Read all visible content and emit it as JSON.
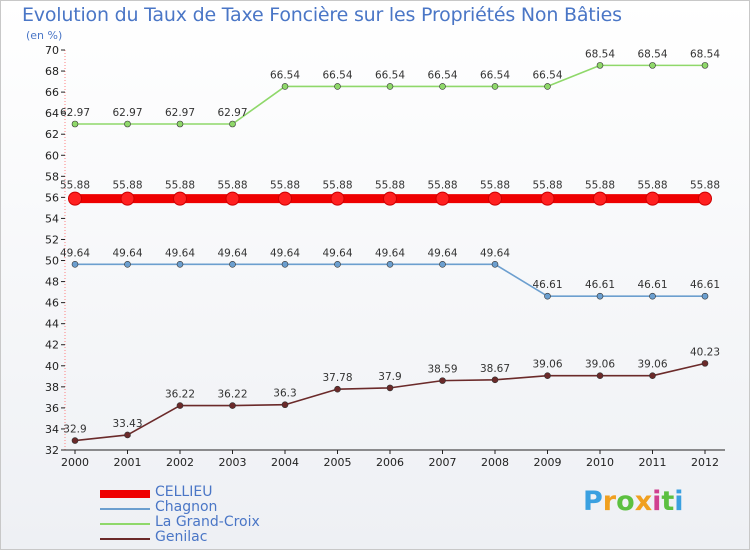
{
  "title": "Evolution du Taux de Taxe Foncière sur les Propriétés Non Bâties",
  "unit": "(en %)",
  "logo": "Proxiti",
  "chart_data": {
    "type": "line",
    "title": "Evolution du Taux de Taxe Foncière sur les Propriétés Non Bâties",
    "ylabel": "(en %)",
    "xlabel": "",
    "ylim": [
      32,
      70
    ],
    "grid": false,
    "legend": "bottom-left",
    "yticks": [
      32,
      34,
      36,
      38,
      40,
      42,
      44,
      46,
      48,
      50,
      52,
      54,
      56,
      58,
      60,
      62,
      64,
      66,
      68,
      70
    ],
    "categories": [
      "2000",
      "2001",
      "2002",
      "2003",
      "2004",
      "2005",
      "2006",
      "2007",
      "2008",
      "2009",
      "2010",
      "2011",
      "2012"
    ],
    "series": [
      {
        "name": "CELLIEU",
        "color": "#ee0000",
        "values": [
          55.88,
          55.88,
          55.88,
          55.88,
          55.88,
          55.88,
          55.88,
          55.88,
          55.88,
          55.88,
          55.88,
          55.88,
          55.88
        ],
        "labels": [
          "55.88",
          "55.88",
          "55.88",
          "55.88",
          "55.88",
          "55.88",
          "55.88",
          "55.88",
          "55.88",
          "55.88",
          "55.88",
          "55.88",
          "55.88"
        ]
      },
      {
        "name": "Chagnon",
        "color": "#6c9fcf",
        "values": [
          49.64,
          49.64,
          49.64,
          49.64,
          49.64,
          49.64,
          49.64,
          49.64,
          49.64,
          46.61,
          46.61,
          46.61,
          46.61
        ],
        "labels": [
          "49.64",
          "49.64",
          "49.64",
          "49.64",
          "49.64",
          "49.64",
          "49.64",
          "49.64",
          "49.64",
          "46.61",
          "46.61",
          "46.61",
          "46.61"
        ]
      },
      {
        "name": "La Grand-Croix",
        "color": "#8fd86a",
        "values": [
          62.97,
          62.97,
          62.97,
          62.97,
          66.54,
          66.54,
          66.54,
          66.54,
          66.54,
          66.54,
          68.54,
          68.54,
          68.54
        ],
        "labels": [
          "62.97",
          "62.97",
          "62.97",
          "62.97",
          "66.54",
          "66.54",
          "66.54",
          "66.54",
          "66.54",
          "66.54",
          "68.54",
          "68.54",
          "68.54"
        ]
      },
      {
        "name": "Genilac",
        "color": "#6b2a2a",
        "values": [
          32.9,
          33.43,
          36.22,
          36.22,
          36.3,
          37.78,
          37.9,
          38.59,
          38.67,
          39.06,
          39.06,
          39.06,
          40.23
        ],
        "labels": [
          "32.9",
          "33.43",
          "36.22",
          "36.22",
          "36.3",
          "37.78",
          "37.9",
          "38.59",
          "38.67",
          "39.06",
          "39.06",
          "39.06",
          "40.23"
        ]
      }
    ]
  }
}
